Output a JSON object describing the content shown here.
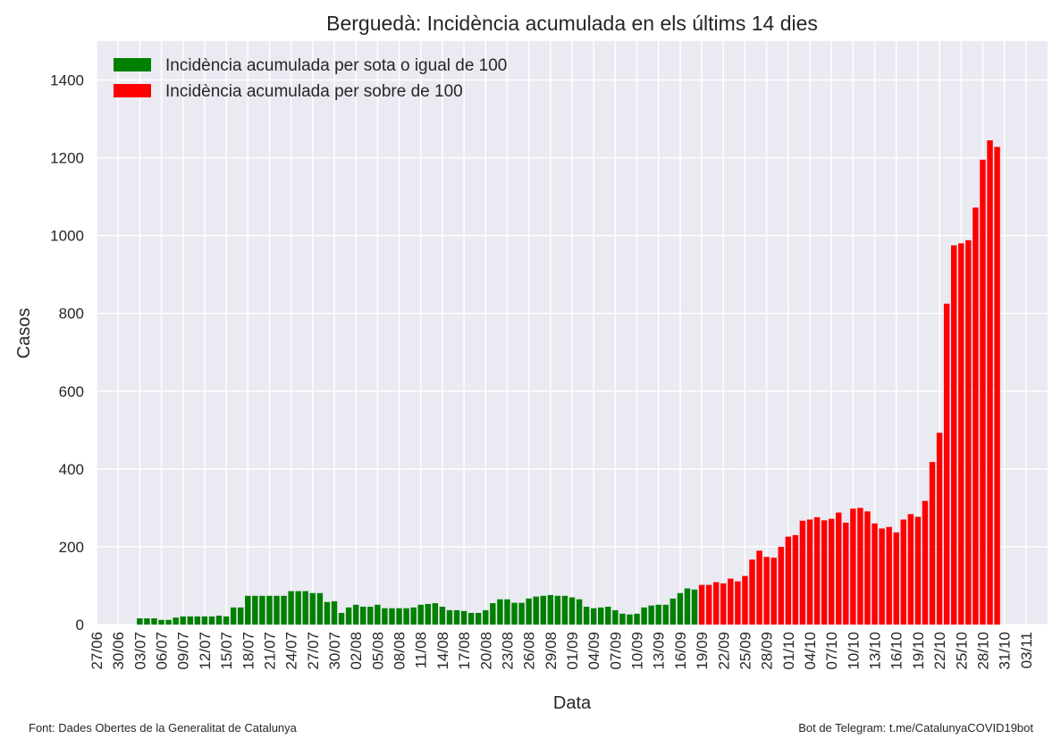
{
  "chart_data": {
    "type": "bar",
    "title": "Berguedà: Incidència acumulada en els últims 14 dies",
    "x_label": "Data",
    "y_label": "Casos",
    "source": "Font: Dades Obertes de la Generalitat de Catalunya",
    "credit": "Bot de Telegram: t.me/CatalunyaCOVID19bot",
    "x": [
      "03/07",
      "04/07",
      "05/07",
      "06/07",
      "07/07",
      "08/07",
      "09/07",
      "10/07",
      "11/07",
      "12/07",
      "13/07",
      "14/07",
      "15/07",
      "16/07",
      "17/07",
      "18/07",
      "19/07",
      "20/07",
      "21/07",
      "22/07",
      "23/07",
      "24/07",
      "25/07",
      "26/07",
      "27/07",
      "28/07",
      "29/07",
      "30/07",
      "31/07",
      "01/08",
      "02/08",
      "03/08",
      "04/08",
      "05/08",
      "06/08",
      "07/08",
      "08/08",
      "09/08",
      "10/08",
      "11/08",
      "12/08",
      "13/08",
      "14/08",
      "15/08",
      "16/08",
      "17/08",
      "18/08",
      "19/08",
      "20/08",
      "21/08",
      "22/08",
      "23/08",
      "24/08",
      "25/08",
      "26/08",
      "27/08",
      "28/08",
      "29/08",
      "30/08",
      "31/08",
      "01/09",
      "02/09",
      "03/09",
      "04/09",
      "05/09",
      "06/09",
      "07/09",
      "08/09",
      "09/09",
      "10/09",
      "11/09",
      "12/09",
      "13/09",
      "14/09",
      "15/09",
      "16/09",
      "17/09",
      "18/09",
      "19/09",
      "20/09",
      "21/09",
      "22/09",
      "23/09",
      "24/09",
      "25/09",
      "26/09",
      "27/09",
      "28/09",
      "29/09",
      "30/09",
      "01/10",
      "02/10",
      "03/10",
      "04/10",
      "05/10",
      "06/10",
      "07/10",
      "08/10",
      "09/10",
      "10/10",
      "11/10",
      "12/10",
      "13/10",
      "14/10",
      "15/10",
      "16/10",
      "17/10",
      "18/10",
      "19/10",
      "20/10",
      "21/10",
      "22/10",
      "23/10",
      "24/10",
      "25/10",
      "26/10",
      "27/10",
      "28/10",
      "29/10",
      "30/10"
    ],
    "series": [
      {
        "name": "Incidència acumulada per sota o igual de 100",
        "color": "#008000",
        "values": [
          16,
          16,
          16,
          12,
          12,
          18,
          21,
          21,
          21,
          21,
          21,
          23,
          21,
          44,
          44,
          74,
          74,
          74,
          74,
          74,
          74,
          86,
          86,
          86,
          81,
          81,
          58,
          60,
          30,
          44,
          51,
          46,
          46,
          51,
          42,
          42,
          42,
          42,
          44,
          51,
          53,
          55,
          46,
          37,
          37,
          35,
          30,
          30,
          37,
          55,
          65,
          65,
          56,
          56,
          67,
          72,
          74,
          76,
          74,
          74,
          70,
          65,
          46,
          42,
          44,
          46,
          37,
          28,
          26,
          28,
          44,
          49,
          51,
          51,
          67,
          81,
          93,
          90,
          null,
          null,
          null,
          null,
          null,
          null,
          null,
          null,
          null,
          null,
          null,
          null,
          null,
          null,
          null,
          null,
          null,
          null,
          null,
          null,
          null,
          null,
          null,
          null,
          null,
          null,
          null,
          null,
          null,
          null,
          null,
          null,
          null,
          null,
          null,
          null,
          null,
          null,
          null,
          null,
          null,
          null
        ]
      },
      {
        "name": "Incidència acumulada per sobre de 100",
        "color": "#ff0000",
        "values": [
          null,
          null,
          null,
          null,
          null,
          null,
          null,
          null,
          null,
          null,
          null,
          null,
          null,
          null,
          null,
          null,
          null,
          null,
          null,
          null,
          null,
          null,
          null,
          null,
          null,
          null,
          null,
          null,
          null,
          null,
          null,
          null,
          null,
          null,
          null,
          null,
          null,
          null,
          null,
          null,
          null,
          null,
          null,
          null,
          null,
          null,
          null,
          null,
          null,
          null,
          null,
          null,
          null,
          null,
          null,
          null,
          null,
          null,
          null,
          null,
          null,
          null,
          null,
          null,
          null,
          null,
          null,
          null,
          null,
          null,
          null,
          null,
          null,
          null,
          null,
          null,
          null,
          null,
          102,
          102,
          109,
          106,
          118,
          111,
          125,
          167,
          190,
          174,
          172,
          200,
          226,
          230,
          267,
          270,
          276,
          268,
          272,
          288,
          262,
          298,
          300,
          291,
          260,
          247,
          251,
          237,
          270,
          284,
          277,
          318,
          418,
          493,
          825,
          975,
          980,
          988,
          1072,
          1195,
          1245,
          1228
        ]
      }
    ],
    "xlim": [
      "27/06",
      "06/11"
    ],
    "xticks": [
      "27/06",
      "30/06",
      "03/07",
      "06/07",
      "09/07",
      "12/07",
      "15/07",
      "18/07",
      "21/07",
      "24/07",
      "27/07",
      "30/07",
      "02/08",
      "05/08",
      "08/08",
      "11/08",
      "14/08",
      "17/08",
      "20/08",
      "23/08",
      "26/08",
      "29/08",
      "01/09",
      "04/09",
      "07/09",
      "10/09",
      "13/09",
      "16/09",
      "19/09",
      "22/09",
      "25/09",
      "28/09",
      "01/10",
      "04/10",
      "07/10",
      "10/10",
      "13/10",
      "16/10",
      "19/10",
      "22/10",
      "25/10",
      "28/10",
      "31/10",
      "03/11"
    ],
    "ylim": [
      0,
      1500
    ],
    "yticks": [
      0,
      200,
      400,
      600,
      800,
      1000,
      1200,
      1400
    ],
    "grid": true,
    "legend": "upper left"
  }
}
